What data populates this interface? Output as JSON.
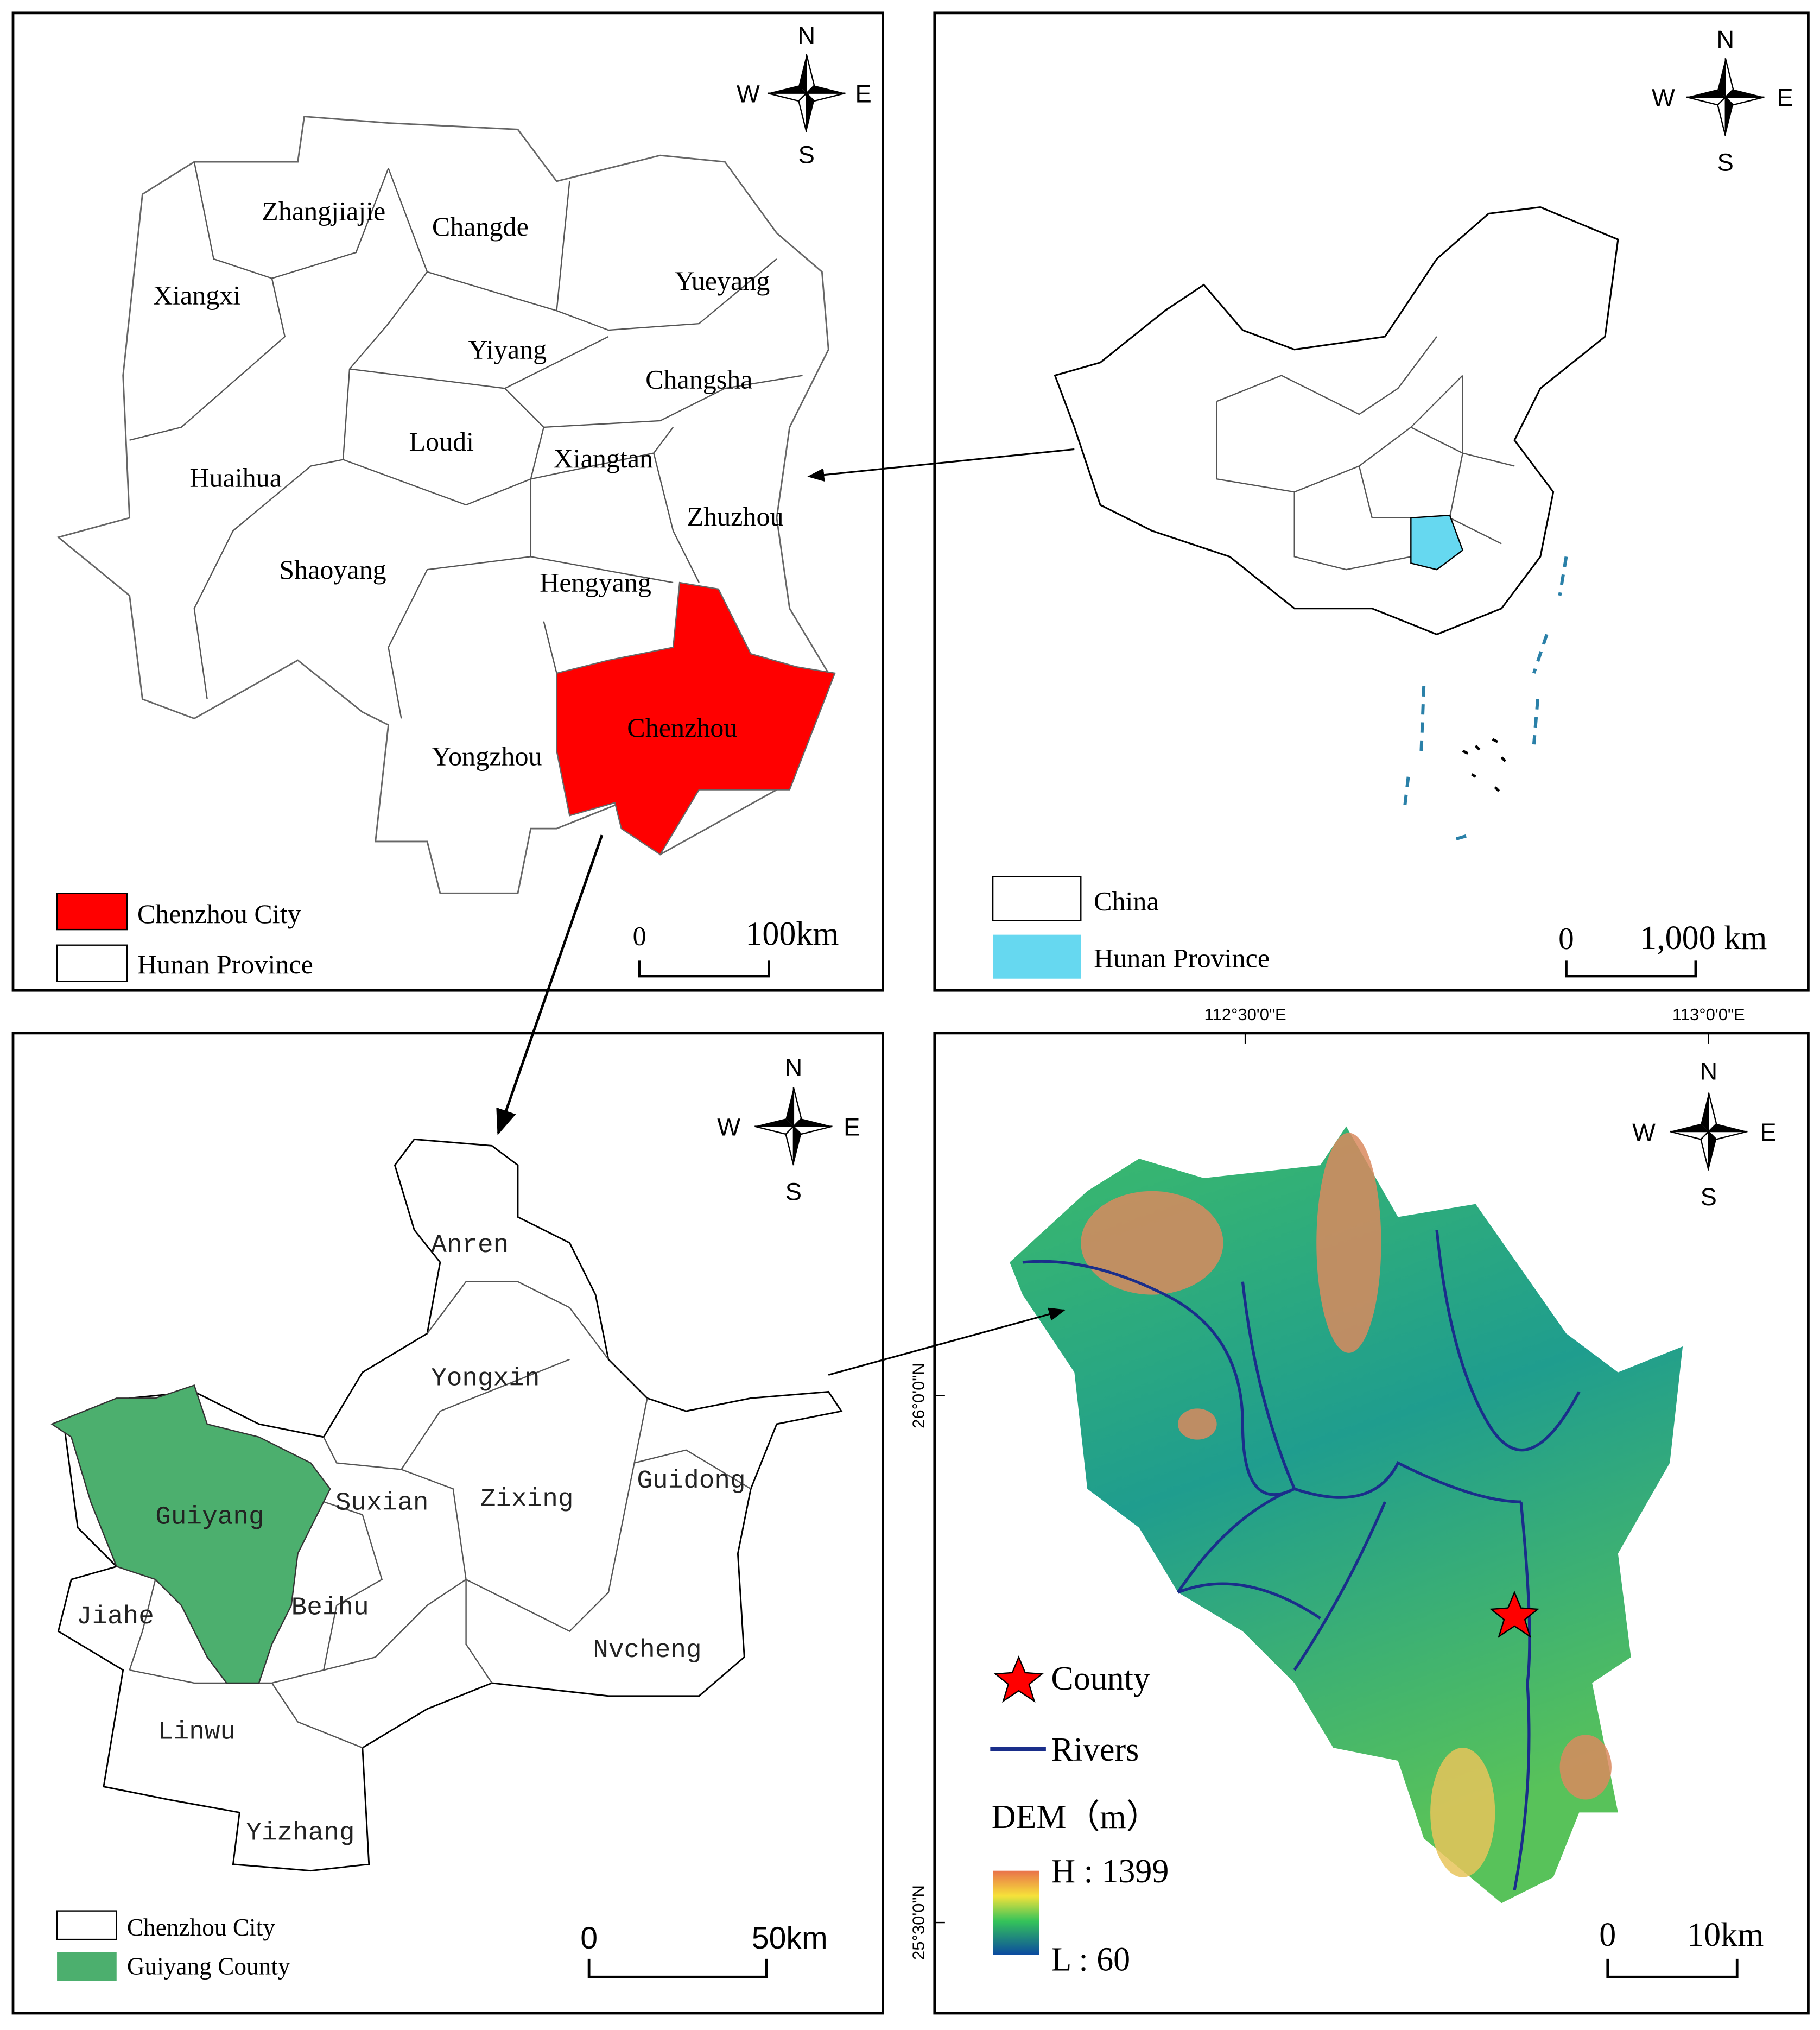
{
  "hunan_panel": {
    "compass": {
      "n": "N",
      "s": "S",
      "w": "W",
      "e": "E"
    },
    "cities": [
      "Zhangjiajie",
      "Changde",
      "Xiangxi",
      "Yueyang",
      "Yiyang",
      "Changsha",
      "Loudi",
      "Xiangtan",
      "Huaihua",
      "Zhuzhou",
      "Shaoyang",
      "Hengyang",
      "Chenzhou",
      "Yongzhou"
    ],
    "legend": [
      "Chenzhou City",
      "Hunan Province"
    ],
    "scale": {
      "start": "0",
      "end": "100km"
    }
  },
  "china_panel": {
    "compass": {
      "n": "N",
      "s": "S",
      "w": "W",
      "e": "E"
    },
    "legend": [
      "China",
      "Hunan Province"
    ],
    "scale": {
      "start": "0",
      "end": "1,000 km"
    }
  },
  "chenzhou_panel": {
    "compass": {
      "n": "N",
      "s": "S",
      "w": "W",
      "e": "E"
    },
    "counties": [
      "Anren",
      "Yongxin",
      "Zixing",
      "Guidong",
      "Guiyang",
      "Suxian",
      "Beihu",
      "Jiahe",
      "Nvcheng",
      "Linwu",
      "Yizhang"
    ],
    "legend": [
      "Chenzhou City",
      "Guiyang County"
    ],
    "scale": {
      "start": "0",
      "end": "50km"
    }
  },
  "dem_panel": {
    "compass": {
      "n": "N",
      "s": "S",
      "w": "W",
      "e": "E"
    },
    "longitudes": [
      "112°30'0\"E",
      "113°0'0\"E"
    ],
    "latitudes": [
      "26°0'0\"N",
      "25°30'0\"N"
    ],
    "legend": {
      "county": "County",
      "rivers": "Rivers",
      "dem_title": "DEM（m）",
      "high": "H : 1399",
      "low": "L : 60"
    },
    "scale": {
      "start": "0",
      "end": "10km"
    }
  }
}
